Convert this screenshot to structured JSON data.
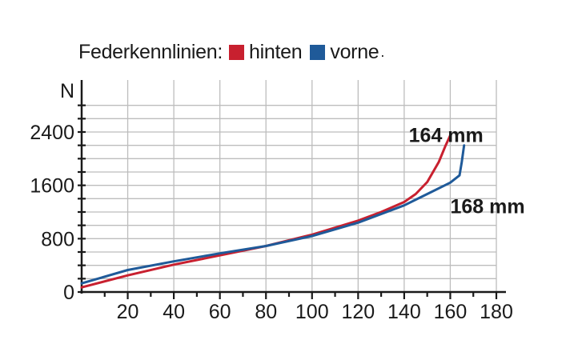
{
  "chart_data": {
    "type": "line",
    "title": "Federkennlinien:",
    "ylabel": "N",
    "xlabel": "",
    "xlim": [
      0,
      180
    ],
    "ylim": [
      0,
      2400
    ],
    "x_ticks": [
      20,
      40,
      60,
      80,
      100,
      120,
      140,
      160,
      180
    ],
    "y_ticks": [
      0,
      800,
      1600,
      2400
    ],
    "grid": true,
    "legend_position": "top",
    "legend_suffix": ".",
    "series": [
      {
        "name": "hinten",
        "color": "#c8202f",
        "x": [
          0,
          20,
          40,
          60,
          80,
          100,
          120,
          130,
          140,
          145,
          150,
          155,
          158,
          160
        ],
        "y": [
          70,
          250,
          410,
          550,
          690,
          860,
          1070,
          1200,
          1350,
          1470,
          1650,
          1950,
          2200,
          2350
        ]
      },
      {
        "name": "vorne",
        "color": "#1f5a99",
        "x": [
          0,
          20,
          40,
          60,
          80,
          100,
          120,
          140,
          150,
          160,
          164,
          165,
          166
        ],
        "y": [
          130,
          330,
          460,
          580,
          690,
          840,
          1040,
          1300,
          1470,
          1640,
          1750,
          1950,
          2200
        ]
      }
    ],
    "annotations": [
      {
        "text": "164 mm",
        "x": 142,
        "y": 2250
      },
      {
        "text": "168 mm",
        "x": 160,
        "y": 1180
      }
    ]
  }
}
